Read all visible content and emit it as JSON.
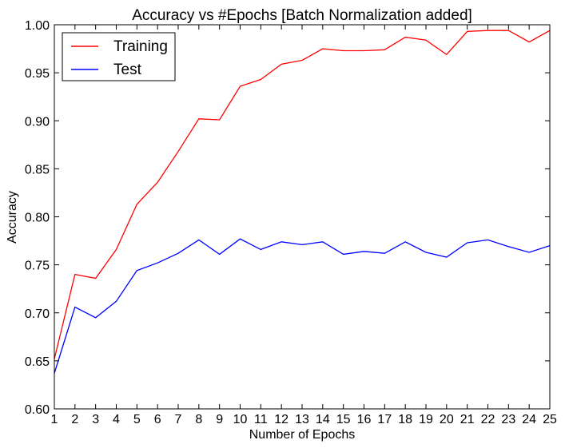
{
  "chart_data": {
    "type": "line",
    "title": "Accuracy vs #Epochs [Batch Normalization added]",
    "xlabel": "Number of Epochs",
    "ylabel": "Accuracy",
    "xlim": [
      1,
      25
    ],
    "ylim": [
      0.6,
      1.0
    ],
    "x": [
      1,
      2,
      3,
      4,
      5,
      6,
      7,
      8,
      9,
      10,
      11,
      12,
      13,
      14,
      15,
      16,
      17,
      18,
      19,
      20,
      21,
      22,
      23,
      24,
      25
    ],
    "xticks": [
      "1",
      "2",
      "3",
      "4",
      "5",
      "6",
      "7",
      "8",
      "9",
      "10",
      "11",
      "12",
      "13",
      "14",
      "15",
      "16",
      "17",
      "18",
      "19",
      "20",
      "21",
      "22",
      "23",
      "24",
      "25"
    ],
    "yticks": [
      "0.60",
      "0.65",
      "0.70",
      "0.75",
      "0.80",
      "0.85",
      "0.90",
      "0.95",
      "1.00"
    ],
    "grid": false,
    "legend_position": "top-left",
    "series": [
      {
        "name": "Training",
        "color": "#ff0000",
        "values": [
          0.652,
          0.74,
          0.736,
          0.766,
          0.813,
          0.836,
          0.868,
          0.902,
          0.901,
          0.936,
          0.943,
          0.959,
          0.963,
          0.975,
          0.973,
          0.973,
          0.974,
          0.987,
          0.984,
          0.969,
          0.993,
          0.994,
          0.994,
          0.982,
          0.994
        ]
      },
      {
        "name": "Test",
        "color": "#0000ff",
        "values": [
          0.637,
          0.706,
          0.695,
          0.712,
          0.744,
          0.752,
          0.762,
          0.776,
          0.761,
          0.777,
          0.766,
          0.774,
          0.771,
          0.774,
          0.761,
          0.764,
          0.762,
          0.774,
          0.763,
          0.758,
          0.773,
          0.776,
          0.769,
          0.763,
          0.77
        ]
      }
    ]
  }
}
